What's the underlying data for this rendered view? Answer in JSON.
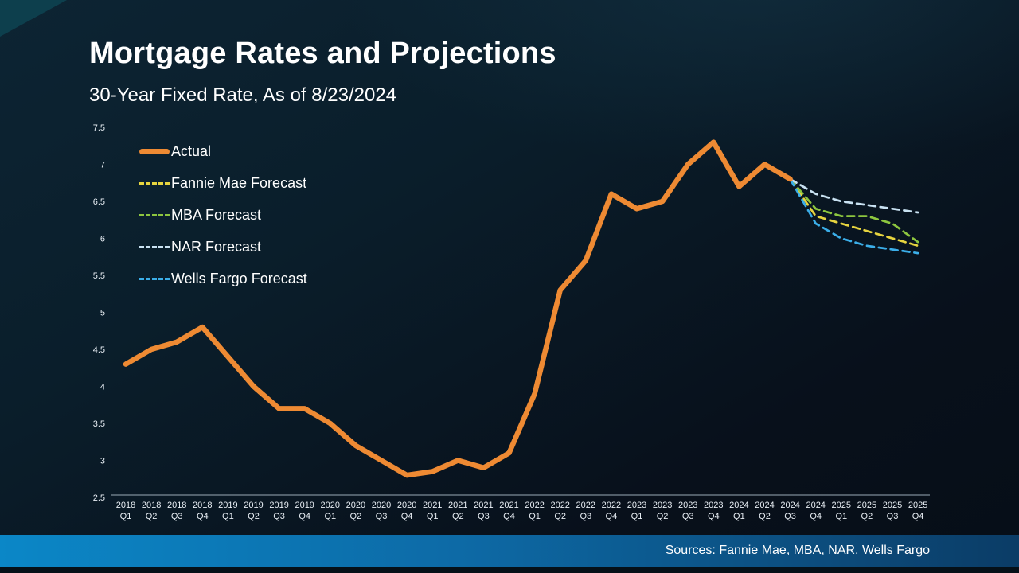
{
  "title": "Mortgage Rates and Projections",
  "subtitle": "30-Year Fixed Rate, As of 8/23/2024",
  "footer": {
    "sources": "Sources: Fannie Mae, MBA, NAR, Wells Fargo"
  },
  "colors": {
    "actual": "#EE8A33",
    "fannie": "#E6D43F",
    "mba": "#8DC63F",
    "nar": "#C9E2F2",
    "wells": "#3BAEE8",
    "axis": "#9AAAB6",
    "tick_text": "#E8EEF4"
  },
  "chart_data": {
    "type": "line",
    "title": "Mortgage Rates and Projections",
    "subtitle": "30-Year Fixed Rate, As of 8/23/2024",
    "xlabel": "",
    "ylabel": "",
    "ylim": [
      2.5,
      7.5
    ],
    "yticks": [
      2.5,
      3,
      3.5,
      4,
      4.5,
      5,
      5.5,
      6,
      6.5,
      7,
      7.5
    ],
    "grid": false,
    "legend_position": "top-left",
    "x": [
      "2018 Q1",
      "2018 Q2",
      "2018 Q3",
      "2018 Q4",
      "2019 Q1",
      "2019 Q2",
      "2019 Q3",
      "2019 Q4",
      "2020 Q1",
      "2020 Q2",
      "2020 Q3",
      "2020 Q4",
      "2021 Q1",
      "2021 Q2",
      "2021 Q3",
      "2021 Q4",
      "2022 Q1",
      "2022 Q2",
      "2022 Q3",
      "2022 Q4",
      "2023 Q1",
      "2023 Q2",
      "2023 Q3",
      "2023 Q4",
      "2024 Q1",
      "2024 Q2",
      "2024 Q3",
      "2024 Q4",
      "2025 Q1",
      "2025 Q2",
      "2025 Q3",
      "2025 Q4"
    ],
    "series": [
      {
        "name": "Actual",
        "style": "solid",
        "color_key": "actual",
        "values": [
          4.3,
          4.5,
          4.6,
          4.8,
          4.4,
          4.0,
          3.7,
          3.7,
          3.5,
          3.2,
          3.0,
          2.8,
          2.85,
          3.0,
          2.9,
          3.1,
          3.9,
          5.3,
          5.7,
          6.6,
          6.4,
          6.5,
          7.0,
          7.3,
          6.7,
          7.0,
          6.8
        ]
      },
      {
        "name": "Fannie Mae Forecast",
        "style": "dashed",
        "color_key": "fannie",
        "values": [
          null,
          null,
          null,
          null,
          null,
          null,
          null,
          null,
          null,
          null,
          null,
          null,
          null,
          null,
          null,
          null,
          null,
          null,
          null,
          null,
          null,
          null,
          null,
          null,
          null,
          null,
          6.8,
          6.3,
          6.2,
          6.1,
          6.0,
          5.9
        ]
      },
      {
        "name": "MBA Forecast",
        "style": "dashed",
        "color_key": "mba",
        "values": [
          null,
          null,
          null,
          null,
          null,
          null,
          null,
          null,
          null,
          null,
          null,
          null,
          null,
          null,
          null,
          null,
          null,
          null,
          null,
          null,
          null,
          null,
          null,
          null,
          null,
          null,
          6.8,
          6.4,
          6.3,
          6.3,
          6.2,
          5.95
        ]
      },
      {
        "name": "NAR Forecast",
        "style": "dashed",
        "color_key": "nar",
        "values": [
          null,
          null,
          null,
          null,
          null,
          null,
          null,
          null,
          null,
          null,
          null,
          null,
          null,
          null,
          null,
          null,
          null,
          null,
          null,
          null,
          null,
          null,
          null,
          null,
          null,
          null,
          6.8,
          6.6,
          6.5,
          6.45,
          6.4,
          6.35
        ]
      },
      {
        "name": "Wells Fargo Forecast",
        "style": "dashed",
        "color_key": "wells",
        "values": [
          null,
          null,
          null,
          null,
          null,
          null,
          null,
          null,
          null,
          null,
          null,
          null,
          null,
          null,
          null,
          null,
          null,
          null,
          null,
          null,
          null,
          null,
          null,
          null,
          null,
          null,
          6.8,
          6.2,
          6.0,
          5.9,
          5.85,
          5.8
        ]
      }
    ]
  }
}
